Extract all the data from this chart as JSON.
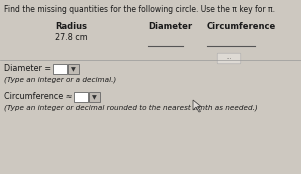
{
  "title": "Find the missing quantities for the following circle. Use the π key for π.",
  "col_headers": [
    "Radius",
    "Diameter",
    "Circumference"
  ],
  "radius_value": "27.8 cm",
  "bg_color": "#cdc8c0",
  "line_color": "#888888",
  "diameter_label": "Diameter =",
  "circumference_label": "Circumference ≈",
  "note1": "(Type an integer or a decimal.)",
  "note2": "(Type an integer or decimal rounded to the nearest tenth as needed.)",
  "box_color": "#ffffff",
  "text_color": "#1a1a1a",
  "header_color": "#1a1a1a",
  "figw": 3.01,
  "figh": 1.74,
  "dpi": 100
}
